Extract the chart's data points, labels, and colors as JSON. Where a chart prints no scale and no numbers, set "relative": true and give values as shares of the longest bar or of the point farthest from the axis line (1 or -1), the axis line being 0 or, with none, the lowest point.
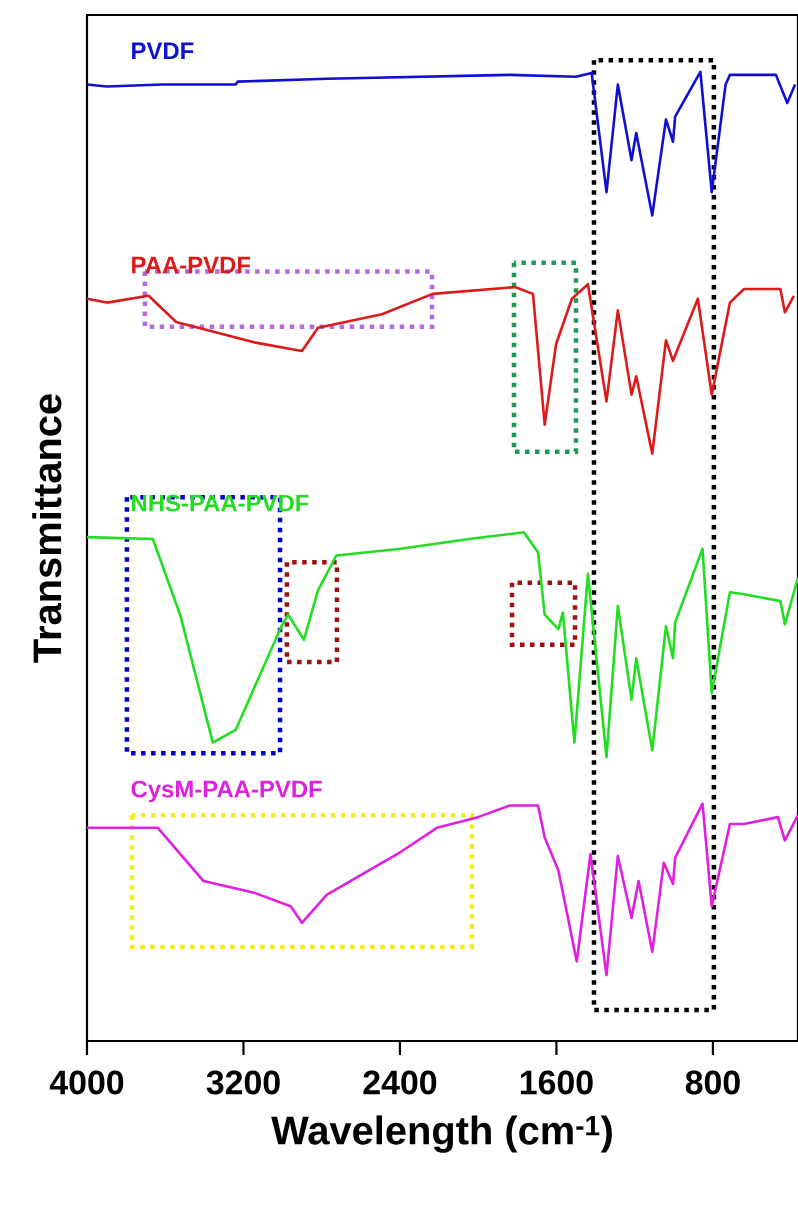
{
  "chart_data": {
    "type": "line",
    "relative": true,
    "xlabel": "Wavelength (cm$^{-1}$)",
    "ylabel": "Transmittance",
    "xlim": [
      4000,
      365
    ],
    "xticks": [
      4000,
      3200,
      2400,
      1600,
      800
    ],
    "line_style": "solid",
    "marker": "none",
    "grid": false,
    "series": [
      {
        "name": "PVDF",
        "color": "#1010d0",
        "x": [
          4000,
          3898,
          3615,
          3240,
          3230,
          2773,
          1838,
          1500,
          1420,
          1344,
          1286,
          1216,
          1192,
          1110,
          1040,
          1004,
          993,
          864,
          806,
          735,
          713,
          478,
          420,
          380
        ],
        "values": [
          0.987,
          0.985,
          0.987,
          0.987,
          0.99,
          0.993,
          0.997,
          0.995,
          0.999,
          0.876,
          0.987,
          0.909,
          0.937,
          0.852,
          0.951,
          0.928,
          0.954,
          1.0,
          0.876,
          0.987,
          0.997,
          0.997,
          0.968,
          0.987
        ]
      },
      {
        "name": "PAA-PVDF",
        "color": "#dd1a1a",
        "x": [
          4000,
          3898,
          3685,
          3544,
          3146,
          2901,
          2819,
          2492,
          2233,
          1812,
          1720,
          1660,
          1602,
          1521,
          1439,
          1344,
          1286,
          1216,
          1192,
          1110,
          1040,
          1004,
          877,
          806,
          713,
          641,
          455,
          432,
          386
        ],
        "values": [
          0.766,
          0.762,
          0.769,
          0.742,
          0.721,
          0.712,
          0.736,
          0.75,
          0.771,
          0.778,
          0.771,
          0.636,
          0.719,
          0.766,
          0.781,
          0.66,
          0.754,
          0.667,
          0.686,
          0.606,
          0.723,
          0.702,
          0.766,
          0.667,
          0.762,
          0.776,
          0.776,
          0.752,
          0.769
        ]
      },
      {
        "name": "NHS-PAA-PVDF",
        "color": "#22dd22",
        "x": [
          4000,
          3663,
          3521,
          3357,
          3240,
          3006,
          2972,
          2891,
          2819,
          2725,
          2397,
          2047,
          1766,
          1694,
          1660,
          1590,
          1567,
          1508,
          1439,
          1344,
          1286,
          1216,
          1192,
          1110,
          1040,
          1004,
          993,
          853,
          806,
          713,
          641,
          455,
          432,
          365
        ],
        "values": [
          0.52,
          0.518,
          0.438,
          0.308,
          0.321,
          0.428,
          0.44,
          0.414,
          0.465,
          0.501,
          0.508,
          0.518,
          0.525,
          0.504,
          0.44,
          0.425,
          0.442,
          0.308,
          0.482,
          0.293,
          0.449,
          0.352,
          0.395,
          0.3,
          0.428,
          0.395,
          0.432,
          0.508,
          0.359,
          0.463,
          0.461,
          0.454,
          0.43,
          0.478
        ]
      },
      {
        "name": "CysM-PAA-PVDF",
        "color": "#e020e0",
        "x": [
          4000,
          3638,
          3404,
          3146,
          2959,
          2901,
          2773,
          2397,
          2211,
          2001,
          1838,
          1694,
          1660,
          1590,
          1496,
          1426,
          1344,
          1286,
          1216,
          1180,
          1110,
          1051,
          1004,
          993,
          853,
          806,
          713,
          641,
          468,
          432,
          365
        ],
        "values": [
          0.22,
          0.22,
          0.165,
          0.153,
          0.139,
          0.122,
          0.151,
          0.195,
          0.22,
          0.231,
          0.243,
          0.243,
          0.21,
          0.176,
          0.082,
          0.193,
          0.068,
          0.191,
          0.127,
          0.165,
          0.092,
          0.184,
          0.162,
          0.189,
          0.245,
          0.139,
          0.224,
          0.224,
          0.231,
          0.207,
          0.233
        ]
      }
    ]
  }
}
